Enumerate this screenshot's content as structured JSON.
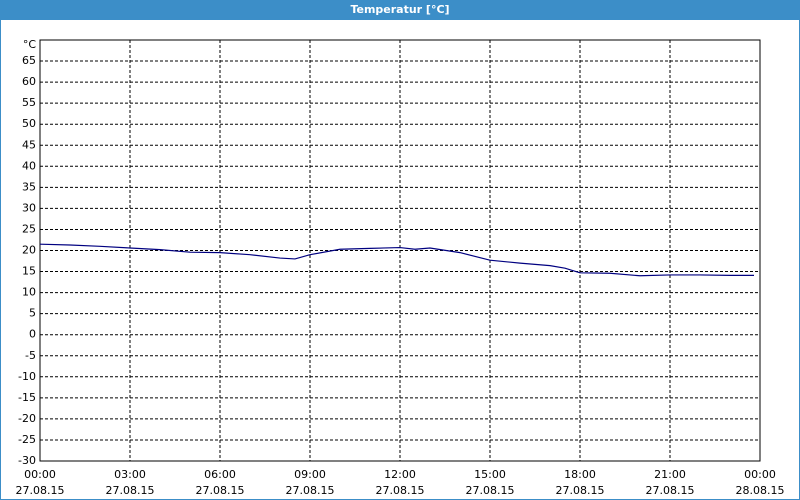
{
  "chart_data": {
    "type": "line",
    "title": "Temperatur [°C]",
    "y_unit": "°C",
    "x": [
      0,
      1,
      2,
      3,
      4,
      5,
      6,
      7,
      8,
      8.5,
      9,
      10,
      11,
      12,
      12.5,
      13,
      14,
      15,
      16,
      17,
      17.5,
      18,
      19,
      20,
      21,
      22,
      23,
      23.8
    ],
    "series": [
      {
        "name": "Temperatur",
        "color": "#000080",
        "values": [
          21.5,
          21.3,
          21,
          20.6,
          20.2,
          19.6,
          19.5,
          19,
          18.2,
          18,
          19,
          20.3,
          20.5,
          20.7,
          20.3,
          20.6,
          19.5,
          17.7,
          17,
          16.4,
          15.8,
          14.7,
          14.6,
          14,
          14.2,
          14.2,
          14.1,
          14.1
        ]
      }
    ],
    "xlim": [
      0,
      24
    ],
    "xticks": [
      {
        "value": 0,
        "label": [
          "00:00",
          "27.08.15"
        ]
      },
      {
        "value": 3,
        "label": [
          "03:00",
          "27.08.15"
        ]
      },
      {
        "value": 6,
        "label": [
          "06:00",
          "27.08.15"
        ]
      },
      {
        "value": 9,
        "label": [
          "09:00",
          "27.08.15"
        ]
      },
      {
        "value": 12,
        "label": [
          "12:00",
          "27.08.15"
        ]
      },
      {
        "value": 15,
        "label": [
          "15:00",
          "27.08.15"
        ]
      },
      {
        "value": 18,
        "label": [
          "18:00",
          "27.08.15"
        ]
      },
      {
        "value": 21,
        "label": [
          "21:00",
          "27.08.15"
        ]
      },
      {
        "value": 24,
        "label": [
          "00:00",
          "28.08.15"
        ]
      }
    ],
    "ylim": [
      -30,
      70
    ],
    "yticks": [
      -30,
      -25,
      -20,
      -15,
      -10,
      -5,
      0,
      5,
      10,
      15,
      20,
      25,
      30,
      35,
      40,
      45,
      50,
      55,
      60,
      65
    ],
    "grid": true
  }
}
